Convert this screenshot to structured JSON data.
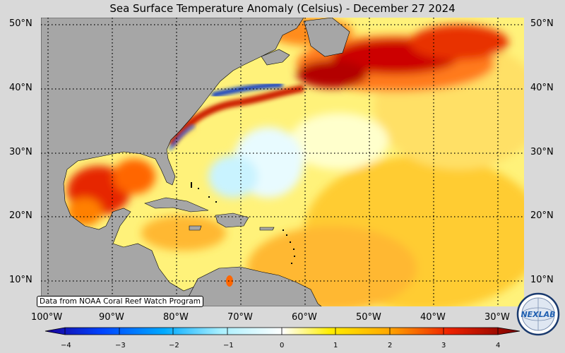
{
  "title": "Sea Surface Temperature Anomaly (Celsius) - December 27 2024",
  "lat_labels": [
    "50°N",
    "40°N",
    "30°N",
    "20°N",
    "10°N"
  ],
  "lon_labels": [
    "100°W",
    "90°W",
    "80°W",
    "70°W",
    "60°W",
    "50°W",
    "40°W",
    "30°W"
  ],
  "colorbar": {
    "min": -4,
    "max": 4,
    "ticks": [
      "−4",
      "−3",
      "−2",
      "−1",
      "0",
      "1",
      "2",
      "3",
      "4"
    ],
    "colors": [
      "#1a0099",
      "#0044ff",
      "#00c8ff",
      "#ffffff",
      "#ffe600",
      "#ff9900",
      "#e60000",
      "#800000"
    ]
  },
  "credit": "Data from NOAA Coral Reef Watch Program",
  "logo": {
    "text": "NEXLAB",
    "icon": "nexlab-globe-logo"
  },
  "colors": {
    "land": "#a6a6a6",
    "ocean_base": "#fff27a",
    "background": "#d9d9d9"
  }
}
